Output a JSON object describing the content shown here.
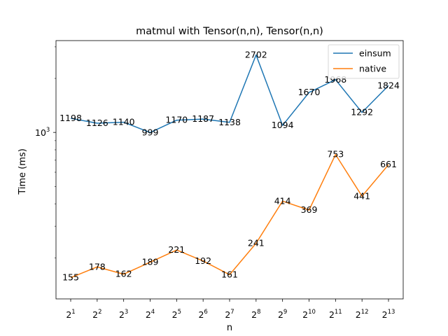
{
  "chart_data": {
    "type": "line",
    "title": "matmul with Tensor(n,n), Tensor(n,n)",
    "xlabel": "n",
    "ylabel": "Time (ms)",
    "categories": [
      "2^1",
      "2^2",
      "2^3",
      "2^4",
      "2^5",
      "2^6",
      "2^7",
      "2^8",
      "2^9",
      "2^10",
      "2^11",
      "2^12",
      "2^13"
    ],
    "x_tick_labels": [
      {
        "base": "2",
        "exp": "1"
      },
      {
        "base": "2",
        "exp": "2"
      },
      {
        "base": "2",
        "exp": "3"
      },
      {
        "base": "2",
        "exp": "4"
      },
      {
        "base": "2",
        "exp": "5"
      },
      {
        "base": "2",
        "exp": "6"
      },
      {
        "base": "2",
        "exp": "7"
      },
      {
        "base": "2",
        "exp": "8"
      },
      {
        "base": "2",
        "exp": "9"
      },
      {
        "base": "2",
        "exp": "10"
      },
      {
        "base": "2",
        "exp": "11"
      },
      {
        "base": "2",
        "exp": "12"
      },
      {
        "base": "2",
        "exp": "13"
      }
    ],
    "y_scale": "log",
    "y_tick": {
      "base": "10",
      "exp": "3"
    },
    "ylim": [
      118,
      3250
    ],
    "grid": false,
    "legend_position": "top-right",
    "series": [
      {
        "name": "einsum",
        "color": "#1f77b4",
        "values": [
          1198,
          1126,
          1140,
          999,
          1170,
          1187,
          1138,
          2702,
          1094,
          1670,
          1968,
          1292,
          1824
        ]
      },
      {
        "name": "native",
        "color": "#ff7f0e",
        "values": [
          155,
          178,
          162,
          189,
          221,
          192,
          161,
          241,
          414,
          369,
          753,
          441,
          661
        ]
      }
    ]
  }
}
